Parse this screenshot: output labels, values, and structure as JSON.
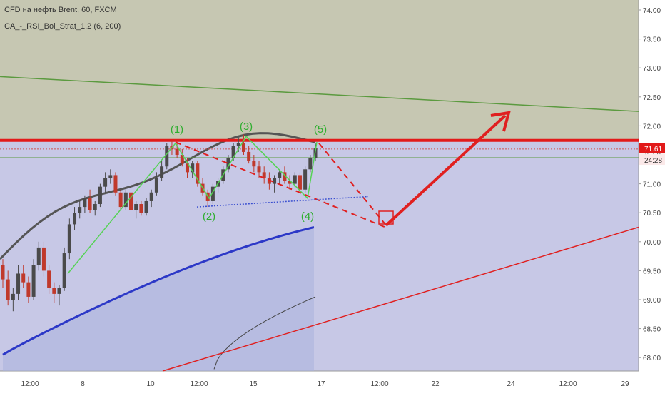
{
  "header": {
    "title": "CFD на нефть Brent, 60, FXCM",
    "indicator": "CA_-_RSI_Bol_Strat_1.2 (6, 200)"
  },
  "colors": {
    "upper_zone": "#c6c7b2",
    "lower_zone": "#c7c8e6",
    "resistance": "#e21a1a",
    "wave_line": "#55d255",
    "wave_label": "#2fae2f",
    "ma_blue": "#2c38c7",
    "band_dark": "#555555",
    "trend_green": "#5b9a3f",
    "trend_red": "#e02020",
    "candle_up": "#4a4a4a",
    "candle_down": "#c0392b",
    "price_badge": "#e21a1a"
  },
  "chart_data": {
    "type": "candlestick",
    "symbol": "CFD на нефть Brent, 60, FXCM",
    "y_ticks": [
      "74.00",
      "73.50",
      "73.00",
      "72.50",
      "72.00",
      "71.50",
      "71.00",
      "70.50",
      "70.00",
      "69.50",
      "69.00",
      "68.50",
      "68.00"
    ],
    "x_ticks": [
      "12:00",
      "8",
      "10",
      "12:00",
      "15",
      "17",
      "12:00",
      "22",
      "24",
      "12:00",
      "29"
    ],
    "ylim": [
      67.85,
      74.15
    ],
    "current_price": "71.61",
    "countdown": "24:28",
    "resistance_level": 71.75,
    "support_level": 71.45,
    "wave_labels": [
      {
        "label": "(1)",
        "x_index": 33,
        "y": 71.88
      },
      {
        "label": "(2)",
        "x_index": 40,
        "y": 70.38
      },
      {
        "label": "(3)",
        "x_index": 47,
        "y": 71.93
      },
      {
        "label": "(4)",
        "x_index": 59,
        "y": 70.38
      },
      {
        "label": "(5)",
        "x_index": 61,
        "y": 71.88
      }
    ],
    "candles_ohlc": [
      [
        69.6,
        69.7,
        69.2,
        69.35
      ],
      [
        69.35,
        69.5,
        68.9,
        69.0
      ],
      [
        69.0,
        69.2,
        68.8,
        69.1
      ],
      [
        69.1,
        69.6,
        69.0,
        69.45
      ],
      [
        69.45,
        69.6,
        69.2,
        69.3
      ],
      [
        69.3,
        69.4,
        68.95,
        69.05
      ],
      [
        69.05,
        69.7,
        69.0,
        69.6
      ],
      [
        69.6,
        70.0,
        69.5,
        69.9
      ],
      [
        69.9,
        70.0,
        69.4,
        69.5
      ],
      [
        69.5,
        69.6,
        69.1,
        69.2
      ],
      [
        69.2,
        69.3,
        68.95,
        69.1
      ],
      [
        69.1,
        69.25,
        68.9,
        69.2
      ],
      [
        69.2,
        69.9,
        69.15,
        69.8
      ],
      [
        69.8,
        70.4,
        69.7,
        70.3
      ],
      [
        70.3,
        70.6,
        70.2,
        70.5
      ],
      [
        70.5,
        70.7,
        70.4,
        70.6
      ],
      [
        70.6,
        70.8,
        70.5,
        70.75
      ],
      [
        70.75,
        70.9,
        70.5,
        70.55
      ],
      [
        70.55,
        70.7,
        70.45,
        70.65
      ],
      [
        70.65,
        71.0,
        70.6,
        70.95
      ],
      [
        70.95,
        71.2,
        70.85,
        71.1
      ],
      [
        71.1,
        71.25,
        71.0,
        71.15
      ],
      [
        71.15,
        71.2,
        70.8,
        70.85
      ],
      [
        70.85,
        70.9,
        70.55,
        70.6
      ],
      [
        70.6,
        70.9,
        70.55,
        70.85
      ],
      [
        70.85,
        70.95,
        70.5,
        70.55
      ],
      [
        70.55,
        70.7,
        70.4,
        70.65
      ],
      [
        70.65,
        70.7,
        70.45,
        70.5
      ],
      [
        70.5,
        70.75,
        70.45,
        70.7
      ],
      [
        70.7,
        70.9,
        70.6,
        70.85
      ],
      [
        70.85,
        71.2,
        70.8,
        71.1
      ],
      [
        71.1,
        71.4,
        71.05,
        71.3
      ],
      [
        71.3,
        71.7,
        71.25,
        71.65
      ],
      [
        71.65,
        71.75,
        71.5,
        71.6
      ],
      [
        71.6,
        71.7,
        71.45,
        71.5
      ],
      [
        71.5,
        71.6,
        71.3,
        71.35
      ],
      [
        71.35,
        71.45,
        71.1,
        71.2
      ],
      [
        71.2,
        71.4,
        71.1,
        71.35
      ],
      [
        71.35,
        71.4,
        70.95,
        71.0
      ],
      [
        71.0,
        71.1,
        70.8,
        70.85
      ],
      [
        70.85,
        70.9,
        70.6,
        70.7
      ],
      [
        70.7,
        71.0,
        70.65,
        70.95
      ],
      [
        70.95,
        71.1,
        70.85,
        71.05
      ],
      [
        71.05,
        71.3,
        71.0,
        71.25
      ],
      [
        71.25,
        71.5,
        71.2,
        71.45
      ],
      [
        71.45,
        71.7,
        71.4,
        71.65
      ],
      [
        71.65,
        71.8,
        71.55,
        71.7
      ],
      [
        71.7,
        71.85,
        71.5,
        71.55
      ],
      [
        71.55,
        71.65,
        71.35,
        71.4
      ],
      [
        71.4,
        71.5,
        71.2,
        71.3
      ],
      [
        71.3,
        71.4,
        71.1,
        71.2
      ],
      [
        71.2,
        71.3,
        71.0,
        71.1
      ],
      [
        71.1,
        71.2,
        70.9,
        71.0
      ],
      [
        71.0,
        71.15,
        70.85,
        71.1
      ],
      [
        71.1,
        71.25,
        71.0,
        71.2
      ],
      [
        71.2,
        71.3,
        71.0,
        71.05
      ],
      [
        71.05,
        71.15,
        70.9,
        71.0
      ],
      [
        71.0,
        71.2,
        70.95,
        71.15
      ],
      [
        71.15,
        71.2,
        70.85,
        70.9
      ],
      [
        70.9,
        71.3,
        70.85,
        71.25
      ],
      [
        71.25,
        71.5,
        71.2,
        71.45
      ],
      [
        71.45,
        71.7,
        71.4,
        71.61
      ]
    ]
  }
}
